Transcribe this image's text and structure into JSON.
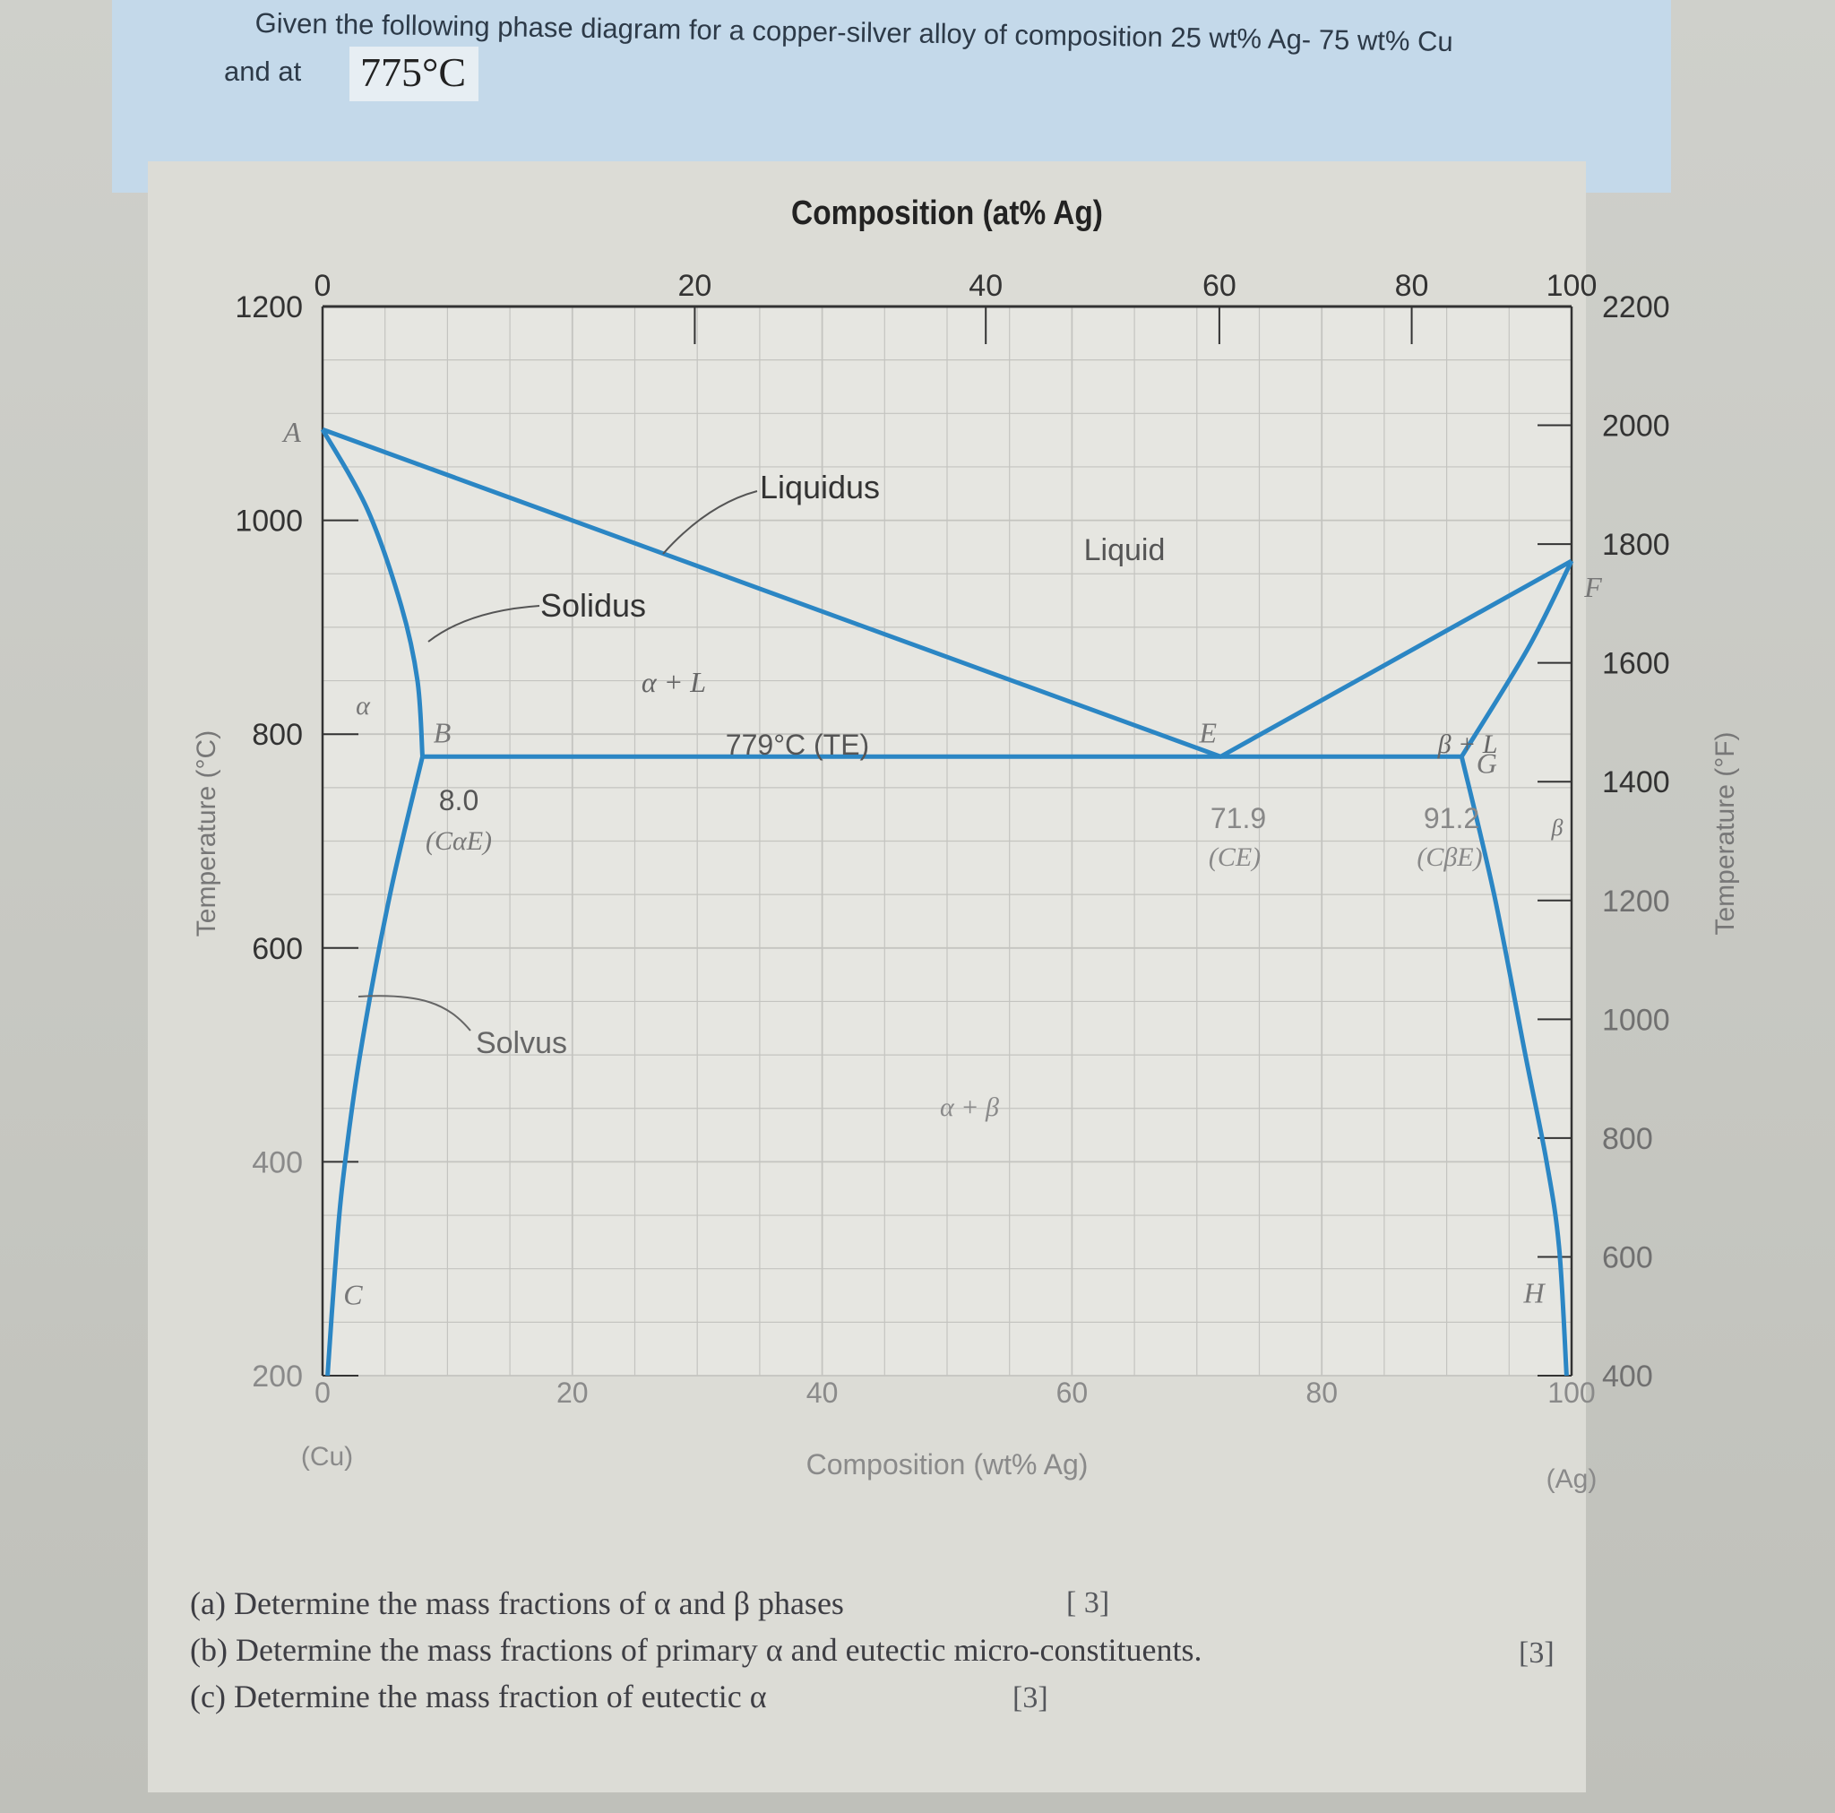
{
  "question": {
    "line1": "Given the following phase diagram for a copper-silver alloy of composition 25 wt% Ag- 75 wt% Cu",
    "line2": "and at",
    "temperature": "775°C"
  },
  "chart_data": {
    "type": "line",
    "title": "Composition (at% Ag)",
    "xlabel": "Composition (wt% Ag)",
    "ylabel": "Temperature (°C)",
    "y2label": "Temperature (°F)",
    "xlim": [
      0,
      100
    ],
    "ylim": [
      200,
      1200
    ],
    "y2lim": [
      400,
      2200
    ],
    "grid": true,
    "x_ticks": [
      "0",
      "20",
      "40",
      "60",
      "80",
      "100"
    ],
    "x_top_ticks": [
      {
        "at_pct": 0,
        "wt": 0,
        "label": "0"
      },
      {
        "at_pct": 20,
        "wt": 29.8,
        "label": "20"
      },
      {
        "at_pct": 40,
        "wt": 53.1,
        "label": "40"
      },
      {
        "at_pct": 60,
        "wt": 71.8,
        "label": "60"
      },
      {
        "at_pct": 80,
        "wt": 87.2,
        "label": "80"
      },
      {
        "at_pct": 100,
        "wt": 100,
        "label": "100"
      }
    ],
    "y_ticks": [
      "200",
      "400",
      "600",
      "800",
      "1000",
      "1200"
    ],
    "y2_ticks": [
      "400",
      "600",
      "800",
      "1000",
      "1200",
      "1400",
      "1600",
      "1800",
      "2000",
      "2200"
    ],
    "end_labels": {
      "left": "(Cu)",
      "right": "(Ag)"
    },
    "series": [
      {
        "name": "Liquidus",
        "points": [
          [
            0,
            1085
          ],
          [
            71.9,
            779
          ],
          [
            100,
            962
          ]
        ]
      },
      {
        "name": "Solidus",
        "points": [
          [
            0,
            1085
          ],
          [
            3.6,
            1010
          ],
          [
            6.3,
            920
          ],
          [
            7.6,
            850
          ],
          [
            8.0,
            779
          ]
        ]
      },
      {
        "name": "Solidus",
        "points": [
          [
            91.2,
            779
          ],
          [
            96.5,
            880
          ],
          [
            100,
            962
          ]
        ]
      },
      {
        "name": "Solvus",
        "points": [
          [
            8.0,
            779
          ],
          [
            5.4,
            650
          ],
          [
            3.0,
            500
          ],
          [
            1.6,
            380
          ],
          [
            1.0,
            300
          ],
          [
            0.4,
            200
          ]
        ]
      },
      {
        "name": "Solvus",
        "points": [
          [
            91.2,
            779
          ],
          [
            93.8,
            650
          ],
          [
            96.3,
            500
          ],
          [
            98.0,
            400
          ],
          [
            99.0,
            320
          ],
          [
            99.6,
            200
          ]
        ]
      },
      {
        "name": "779°C (TE)",
        "points": [
          [
            8.0,
            779
          ],
          [
            91.2,
            779
          ]
        ]
      }
    ],
    "points": [
      {
        "label": "A",
        "x": 0,
        "y": 1085
      },
      {
        "label": "B",
        "x": 8.0,
        "y": 779
      },
      {
        "label": "C",
        "x": 1.0,
        "y": 300
      },
      {
        "label": "E",
        "x": 71.9,
        "y": 779
      },
      {
        "label": "F",
        "x": 100,
        "y": 962
      },
      {
        "label": "G",
        "x": 91.2,
        "y": 779
      },
      {
        "label": "H",
        "x": 99.0,
        "y": 300
      }
    ],
    "annotations": [
      {
        "text": "Liquidus"
      },
      {
        "text": "Solidus"
      },
      {
        "text": "Solvus"
      },
      {
        "text": "Liquid"
      },
      {
        "text": "α"
      },
      {
        "text": "α + L"
      },
      {
        "text": "β + L"
      },
      {
        "text": "α + β"
      },
      {
        "text": "β"
      },
      {
        "text": "779°C (TE)"
      },
      {
        "text": "8.0"
      },
      {
        "text": "(CαE)"
      },
      {
        "text": "71.9"
      },
      {
        "text": "(CE)"
      },
      {
        "text": "91.2"
      },
      {
        "text": "(CβE)"
      }
    ]
  },
  "questions": [
    {
      "text": "(a) Determine the mass fractions of α and β phases",
      "marks": "[ 3]"
    },
    {
      "text": "(b) Determine the mass fractions of primary α and eutectic micro-constituents.",
      "marks": "[3]"
    },
    {
      "text": "(c)  Determine the mass fraction of eutectic α",
      "marks": "[3]"
    }
  ],
  "colors": {
    "curve": "#2b86c4",
    "grid": "#c4c4c0",
    "axis": "#333333"
  }
}
